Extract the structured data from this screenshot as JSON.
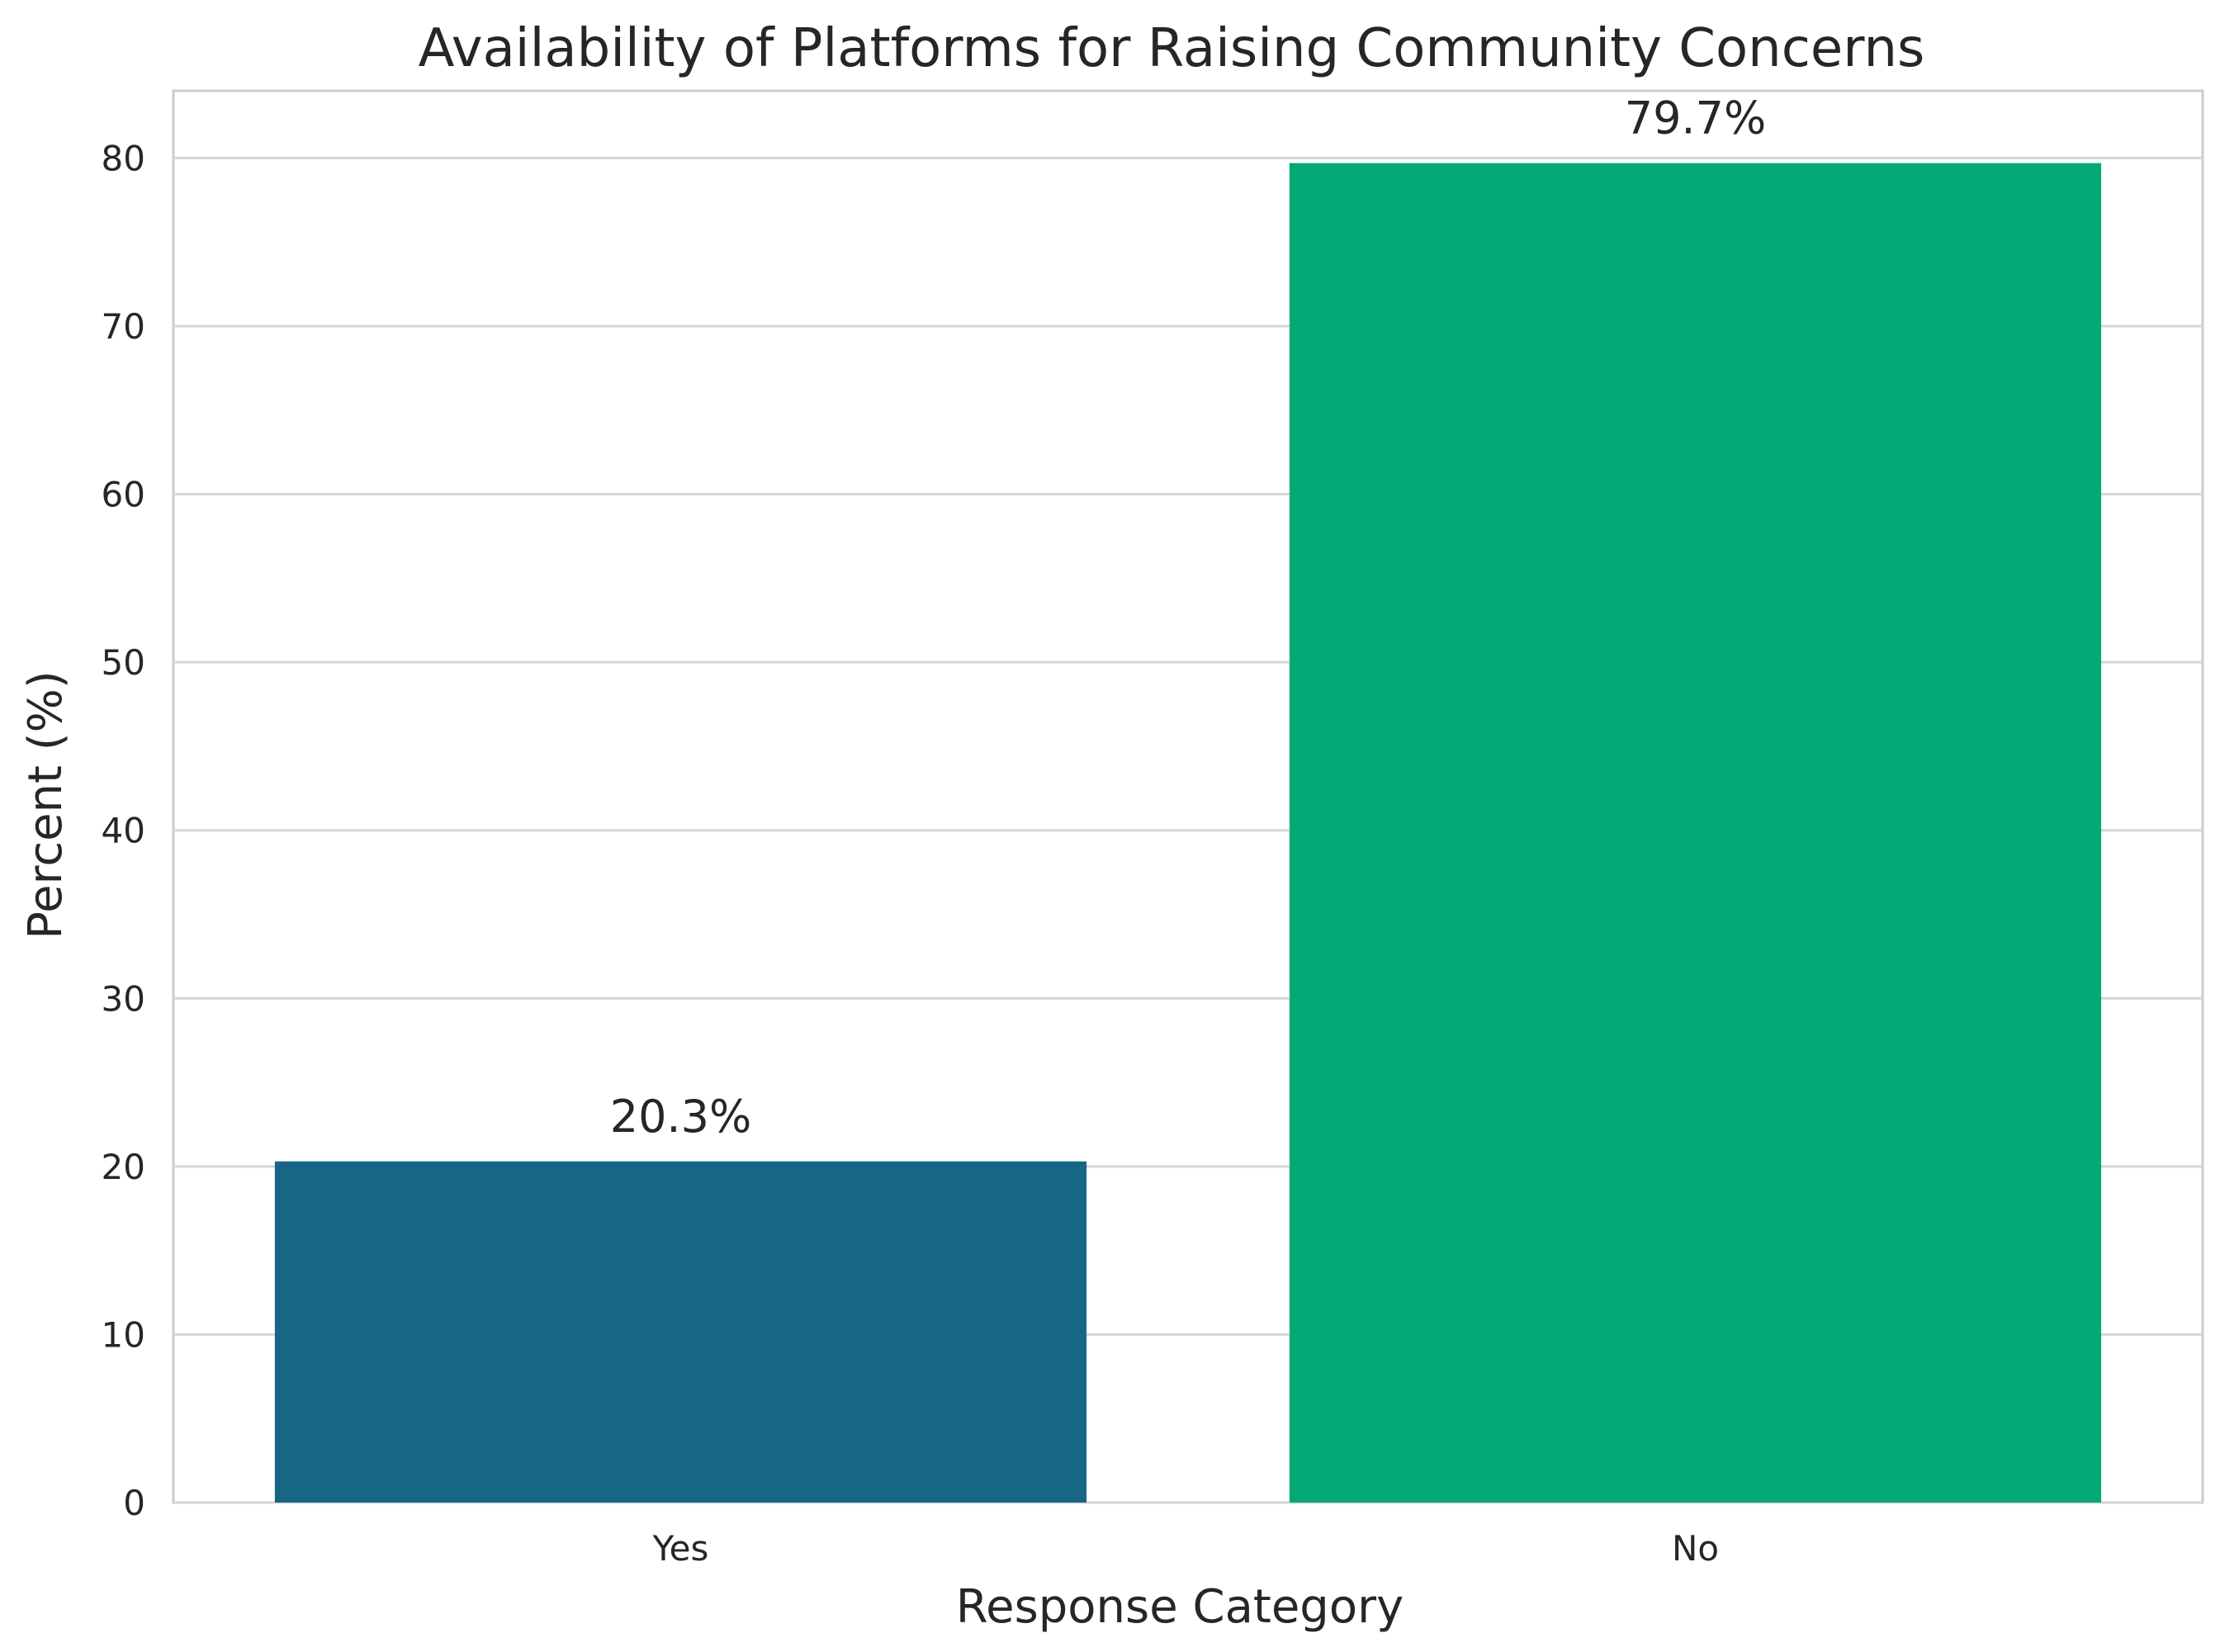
{
  "chart_data": {
    "type": "bar",
    "title": "Availability of Platforms for Raising Community Concerns",
    "xlabel": "Response Category",
    "ylabel": "Percent (%)",
    "categories": [
      "Yes",
      "No"
    ],
    "values": [
      20.3,
      79.7
    ],
    "value_labels": [
      "20.3%",
      "79.7%"
    ],
    "colors": [
      "#176686",
      "#02a875"
    ],
    "ylim": [
      0,
      84
    ],
    "yticks": [
      0,
      10,
      20,
      30,
      40,
      50,
      60,
      70,
      80
    ],
    "grid": true
  }
}
